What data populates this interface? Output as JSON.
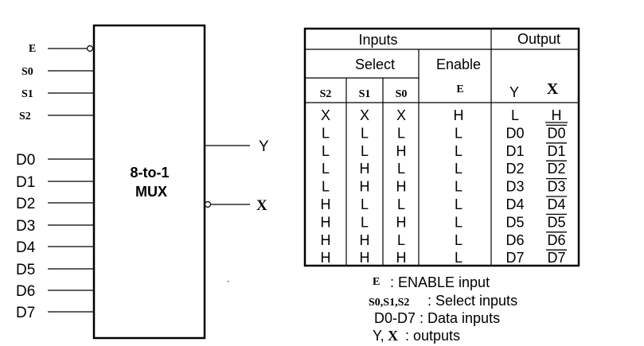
{
  "mux": {
    "title_line1": "8-to-1",
    "title_line2": "MUX"
  },
  "control_inputs": [
    "E",
    "S0",
    "S1",
    "S2"
  ],
  "data_inputs": [
    "D0",
    "D1",
    "D2",
    "D3",
    "D4",
    "D5",
    "D6",
    "D7"
  ],
  "outputs": [
    "Y",
    "X"
  ],
  "table": {
    "header_inputs": "Inputs",
    "header_output": "Output",
    "header_select": "Select",
    "header_enable": "Enable",
    "col_s2": "S2",
    "col_s1": "S1",
    "col_s0": "S0",
    "col_e": "E",
    "col_y": "Y",
    "col_x": "X",
    "rows": [
      {
        "s2": "X",
        "s1": "X",
        "s0": "X",
        "e": "H",
        "y": "L",
        "x": "H"
      },
      {
        "s2": "L",
        "s1": "L",
        "s0": "L",
        "e": "L",
        "y": "D0",
        "x": "D0"
      },
      {
        "s2": "L",
        "s1": "L",
        "s0": "H",
        "e": "L",
        "y": "D1",
        "x": "D1"
      },
      {
        "s2": "L",
        "s1": "H",
        "s0": "L",
        "e": "L",
        "y": "D2",
        "x": "D2"
      },
      {
        "s2": "L",
        "s1": "H",
        "s0": "H",
        "e": "L",
        "y": "D3",
        "x": "D3"
      },
      {
        "s2": "H",
        "s1": "L",
        "s0": "L",
        "e": "L",
        "y": "D4",
        "x": "D4"
      },
      {
        "s2": "H",
        "s1": "L",
        "s0": "H",
        "e": "L",
        "y": "D5",
        "x": "D5"
      },
      {
        "s2": "H",
        "s1": "H",
        "s0": "L",
        "e": "L",
        "y": "D6",
        "x": "D6"
      },
      {
        "s2": "H",
        "s1": "H",
        "s0": "H",
        "e": "L",
        "y": "D7",
        "x": "D7"
      }
    ]
  },
  "legend": {
    "e_symbol": "E",
    "e_text": ": ENABLE input",
    "sel_symbols": "S0,S1,S2",
    "sel_text": ": Select inputs",
    "data_text": "D0-D7 : Data inputs",
    "out_y": "Y,",
    "out_x": "X",
    "out_text": ": outputs"
  }
}
